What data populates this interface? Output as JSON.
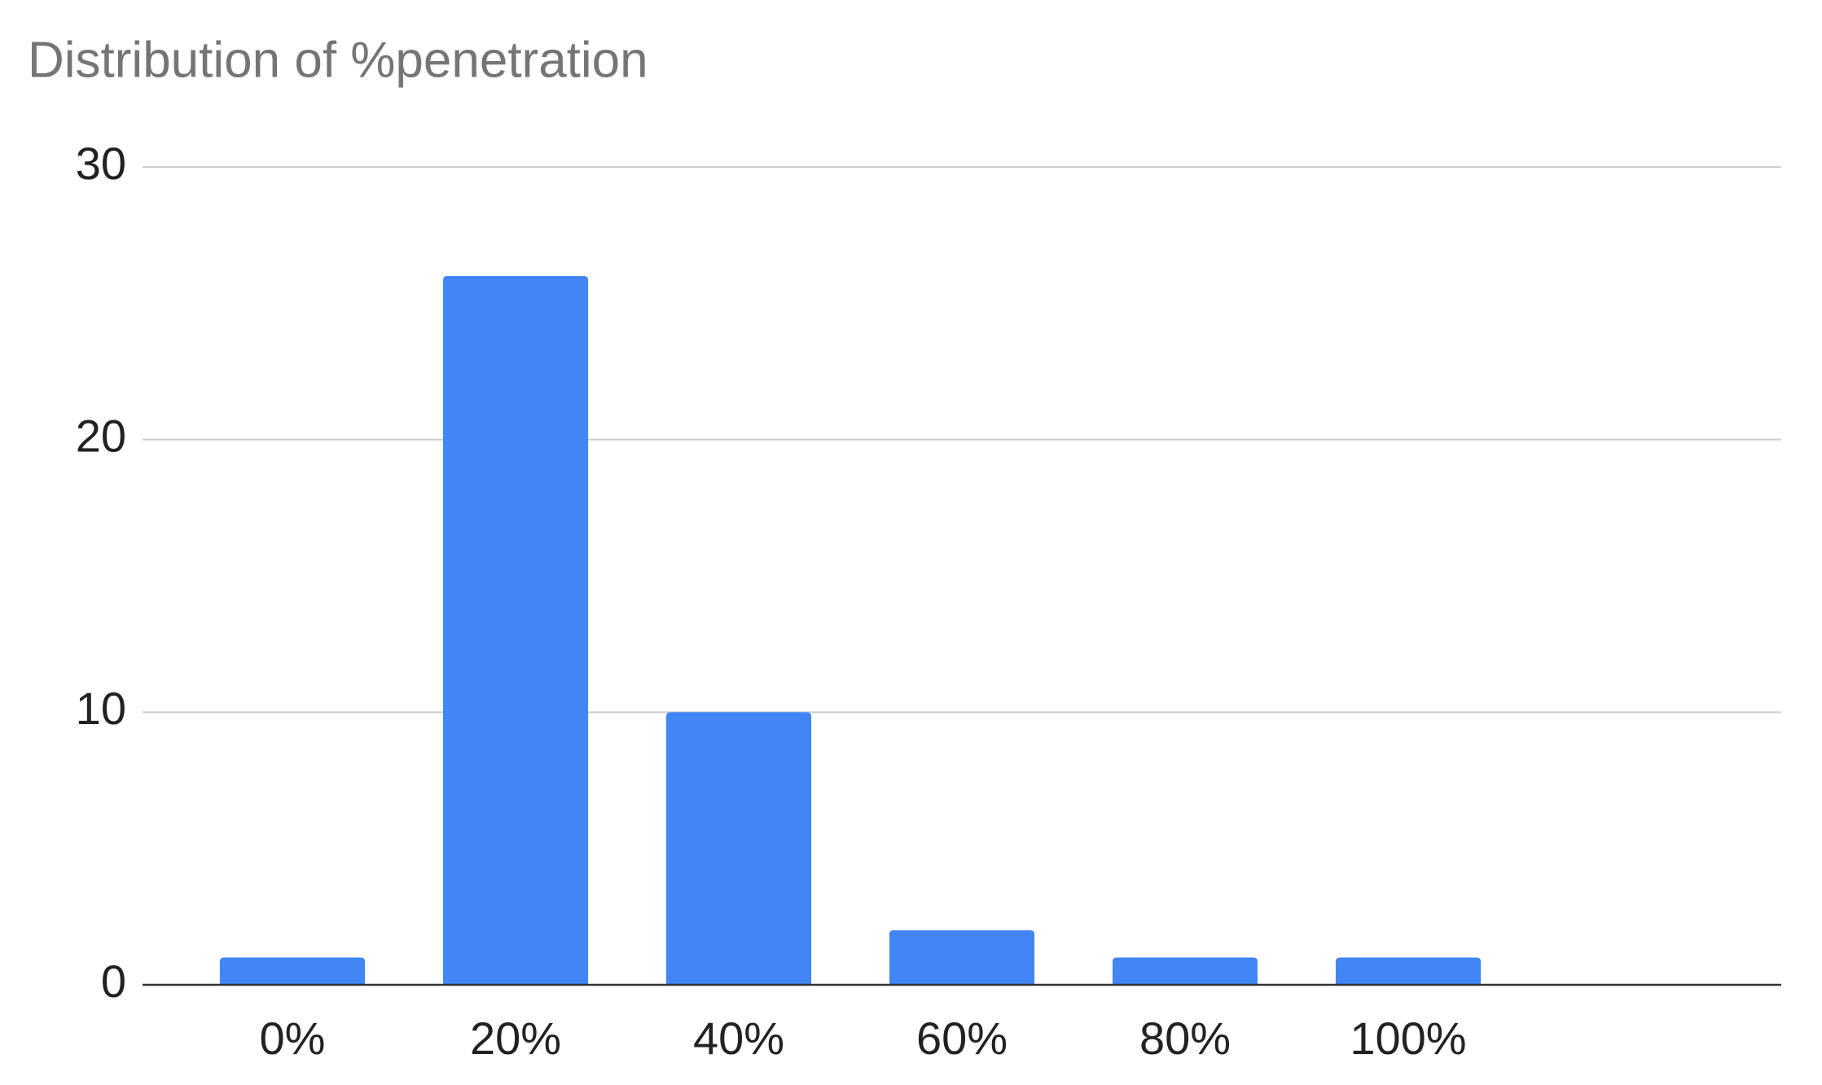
{
  "chart_data": {
    "type": "bar",
    "title": "Distribution of %penetration",
    "categories": [
      "0%",
      "20%",
      "40%",
      "60%",
      "80%",
      "100%",
      null
    ],
    "values": [
      1,
      26,
      10,
      2,
      1,
      1,
      null
    ],
    "color": "#4285f4",
    "ylim": [
      0,
      30
    ],
    "yticks": [
      0,
      10,
      20,
      30
    ],
    "grid": true
  }
}
